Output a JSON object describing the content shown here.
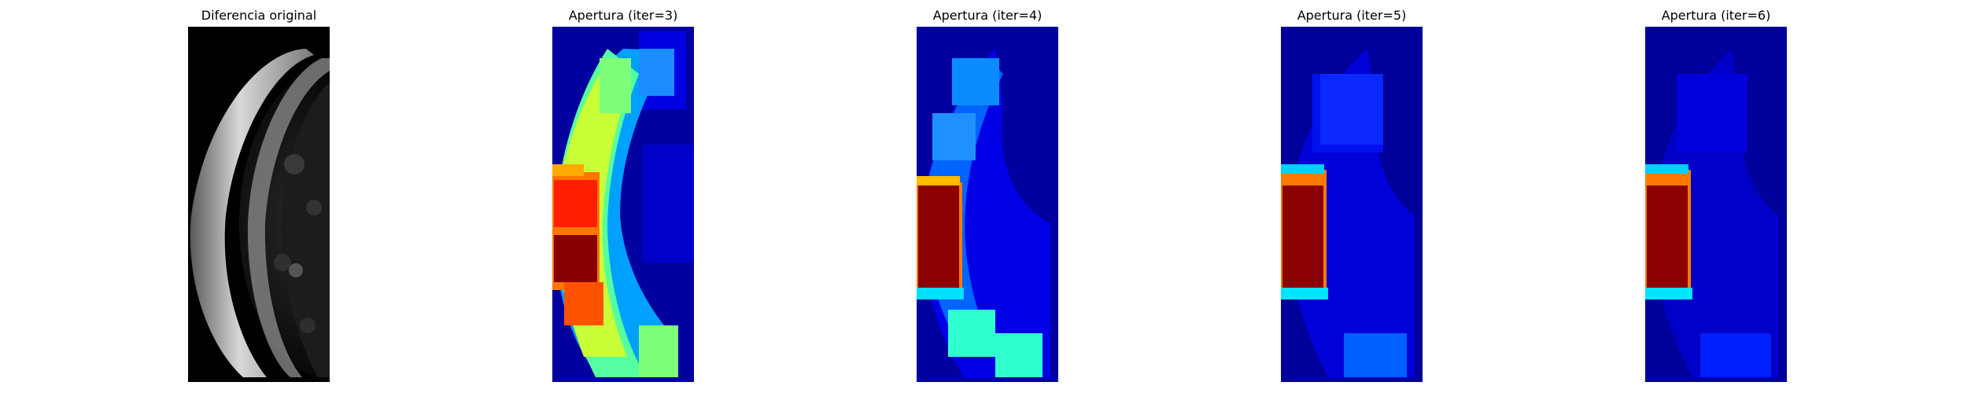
{
  "figure": {
    "panels": [
      {
        "title": "Diferencia original",
        "colormap": "gray"
      },
      {
        "title": "Apertura (iter=3)",
        "colormap": "jet"
      },
      {
        "title": "Apertura (iter=4)",
        "colormap": "jet"
      },
      {
        "title": "Apertura (iter=5)",
        "colormap": "jet"
      },
      {
        "title": "Apertura (iter=6)",
        "colormap": "jet"
      }
    ]
  }
}
